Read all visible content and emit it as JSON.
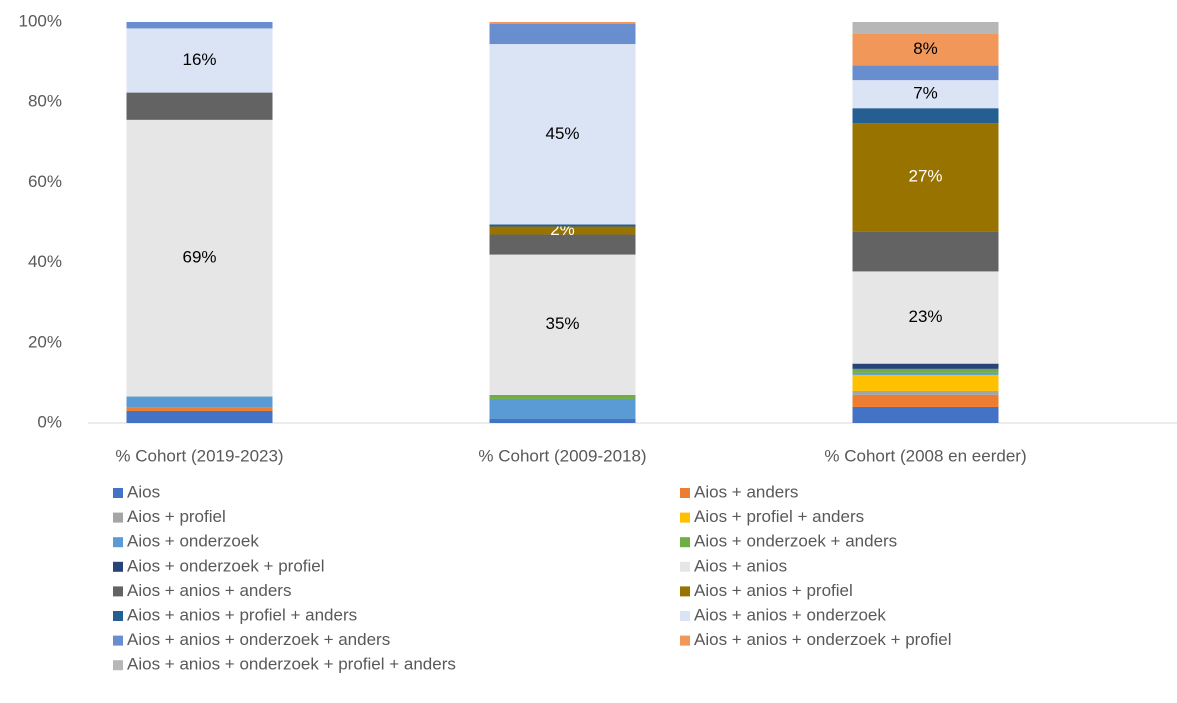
{
  "chart_data": {
    "type": "stacked_bar",
    "categories": [
      "% Cohort (2019-2023)",
      "% Cohort (2009-2018)",
      "% Cohort (2008 en eerder)"
    ],
    "ylim": [
      0,
      100
    ],
    "yticks": [
      {
        "value": 0,
        "label": "0%"
      },
      {
        "value": 20,
        "label": "20%"
      },
      {
        "value": 40,
        "label": "40%"
      },
      {
        "value": 60,
        "label": "60%"
      },
      {
        "value": 80,
        "label": "80%"
      },
      {
        "value": 100,
        "label": "100%"
      }
    ],
    "grid": false,
    "legend": "bottom",
    "series": [
      {
        "name": "Aios",
        "color": "#4472c4",
        "values": [
          3,
          1,
          4
        ]
      },
      {
        "name": "Aios + anders",
        "color": "#ed7d31",
        "values": [
          0.8,
          0,
          3
        ]
      },
      {
        "name": "Aios + profiel",
        "color": "#a5a5a5",
        "values": [
          0,
          0,
          1
        ]
      },
      {
        "name": "Aios + profiel + anders",
        "color": "#ffc000",
        "values": [
          0,
          0,
          4
        ]
      },
      {
        "name": "Aios + onderzoek",
        "color": "#5b9bd5",
        "values": [
          2.8,
          5,
          0.5
        ]
      },
      {
        "name": "Aios + onderzoek + anders",
        "color": "#70ad47",
        "values": [
          0,
          1,
          1
        ]
      },
      {
        "name": "Aios + onderzoek + profiel",
        "color": "#264478",
        "values": [
          0,
          0,
          1.3
        ]
      },
      {
        "name": "Aios + anios",
        "color": "#e6e6e6",
        "values": [
          69,
          35,
          23
        ],
        "value_labels": [
          "69%",
          "35%",
          "23%"
        ]
      },
      {
        "name": "Aios + anios + anders",
        "color": "#636363",
        "values": [
          6.8,
          5,
          10
        ]
      },
      {
        "name": "Aios + anios + profiel",
        "color": "#997300",
        "values": [
          0,
          2,
          27
        ],
        "value_labels": [
          null,
          "2%",
          "27%"
        ]
      },
      {
        "name": "Aios + anios + profiel + anders",
        "color": "#255e91",
        "values": [
          0,
          0.5,
          3.7
        ]
      },
      {
        "name": "Aios + anios + onderzoek",
        "color": "#dbe4f4",
        "values": [
          16,
          45,
          7
        ],
        "value_labels": [
          "16%",
          "45%",
          "7%"
        ]
      },
      {
        "name": "Aios + anios + onderzoek + anders",
        "color": "#698ed0",
        "values": [
          1.6,
          5,
          3.7
        ]
      },
      {
        "name": "Aios + anios + onderzoek + profiel",
        "color": "#f1975a",
        "values": [
          0,
          0.5,
          8
        ],
        "value_labels": [
          null,
          null,
          "8%"
        ]
      },
      {
        "name": "Aios + anios + onderzoek + profiel + anders",
        "color": "#b7b7b7",
        "values": [
          0,
          0,
          2.8
        ]
      }
    ]
  }
}
